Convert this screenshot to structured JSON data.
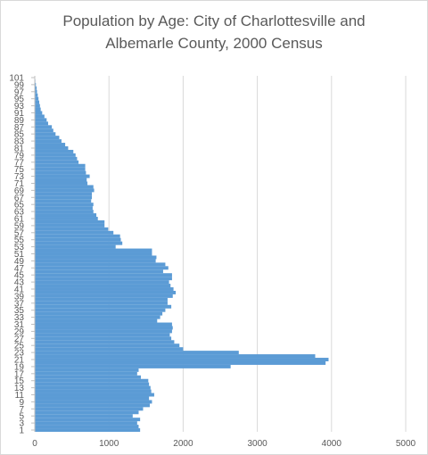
{
  "chart_data": {
    "type": "bar",
    "orientation": "horizontal",
    "title_line1": "Population by Age: City of Charlottesville and",
    "title_line2": "Albemarle County, 2000 Census",
    "xlabel": "",
    "ylabel": "",
    "xlim": [
      0,
      5000
    ],
    "x_ticks": [
      0,
      1000,
      2000,
      3000,
      4000,
      5000
    ],
    "y_tick_labels": [
      1,
      3,
      5,
      7,
      9,
      11,
      13,
      15,
      17,
      19,
      21,
      23,
      25,
      27,
      29,
      31,
      33,
      35,
      37,
      39,
      41,
      43,
      45,
      47,
      49,
      51,
      53,
      55,
      57,
      59,
      61,
      63,
      65,
      67,
      69,
      71,
      73,
      75,
      77,
      79,
      81,
      83,
      85,
      87,
      89,
      91,
      93,
      95,
      97,
      99,
      101
    ],
    "grid": "vertical",
    "legend": "none",
    "bar_color": "#5b9bd5",
    "categories": [
      1,
      2,
      3,
      4,
      5,
      6,
      7,
      8,
      9,
      10,
      11,
      12,
      13,
      14,
      15,
      16,
      17,
      18,
      19,
      20,
      21,
      22,
      23,
      24,
      25,
      26,
      27,
      28,
      29,
      30,
      31,
      32,
      33,
      34,
      35,
      36,
      37,
      38,
      39,
      40,
      41,
      42,
      43,
      44,
      45,
      46,
      47,
      48,
      49,
      50,
      51,
      52,
      53,
      54,
      55,
      56,
      57,
      58,
      59,
      60,
      61,
      62,
      63,
      64,
      65,
      66,
      67,
      68,
      69,
      70,
      71,
      72,
      73,
      74,
      75,
      76,
      77,
      78,
      79,
      80,
      81,
      82,
      83,
      84,
      85,
      86,
      87,
      88,
      89,
      90,
      91,
      92,
      93,
      94,
      95,
      96,
      97,
      98,
      99,
      100,
      101
    ],
    "values": [
      1420,
      1400,
      1380,
      1420,
      1320,
      1400,
      1460,
      1550,
      1580,
      1540,
      1610,
      1570,
      1560,
      1540,
      1530,
      1430,
      1380,
      1400,
      2640,
      3920,
      3960,
      3780,
      2750,
      2000,
      1950,
      1880,
      1840,
      1820,
      1850,
      1860,
      1850,
      1650,
      1690,
      1720,
      1760,
      1840,
      1790,
      1790,
      1860,
      1900,
      1870,
      1830,
      1810,
      1850,
      1850,
      1730,
      1800,
      1760,
      1630,
      1640,
      1580,
      1580,
      1090,
      1180,
      1160,
      1150,
      1060,
      990,
      940,
      940,
      850,
      830,
      790,
      780,
      790,
      760,
      770,
      770,
      800,
      790,
      710,
      700,
      740,
      690,
      680,
      680,
      590,
      570,
      550,
      520,
      450,
      410,
      360,
      330,
      280,
      250,
      230,
      180,
      160,
      130,
      100,
      80,
      70,
      60,
      50,
      40,
      30,
      25,
      15,
      8,
      5
    ]
  }
}
